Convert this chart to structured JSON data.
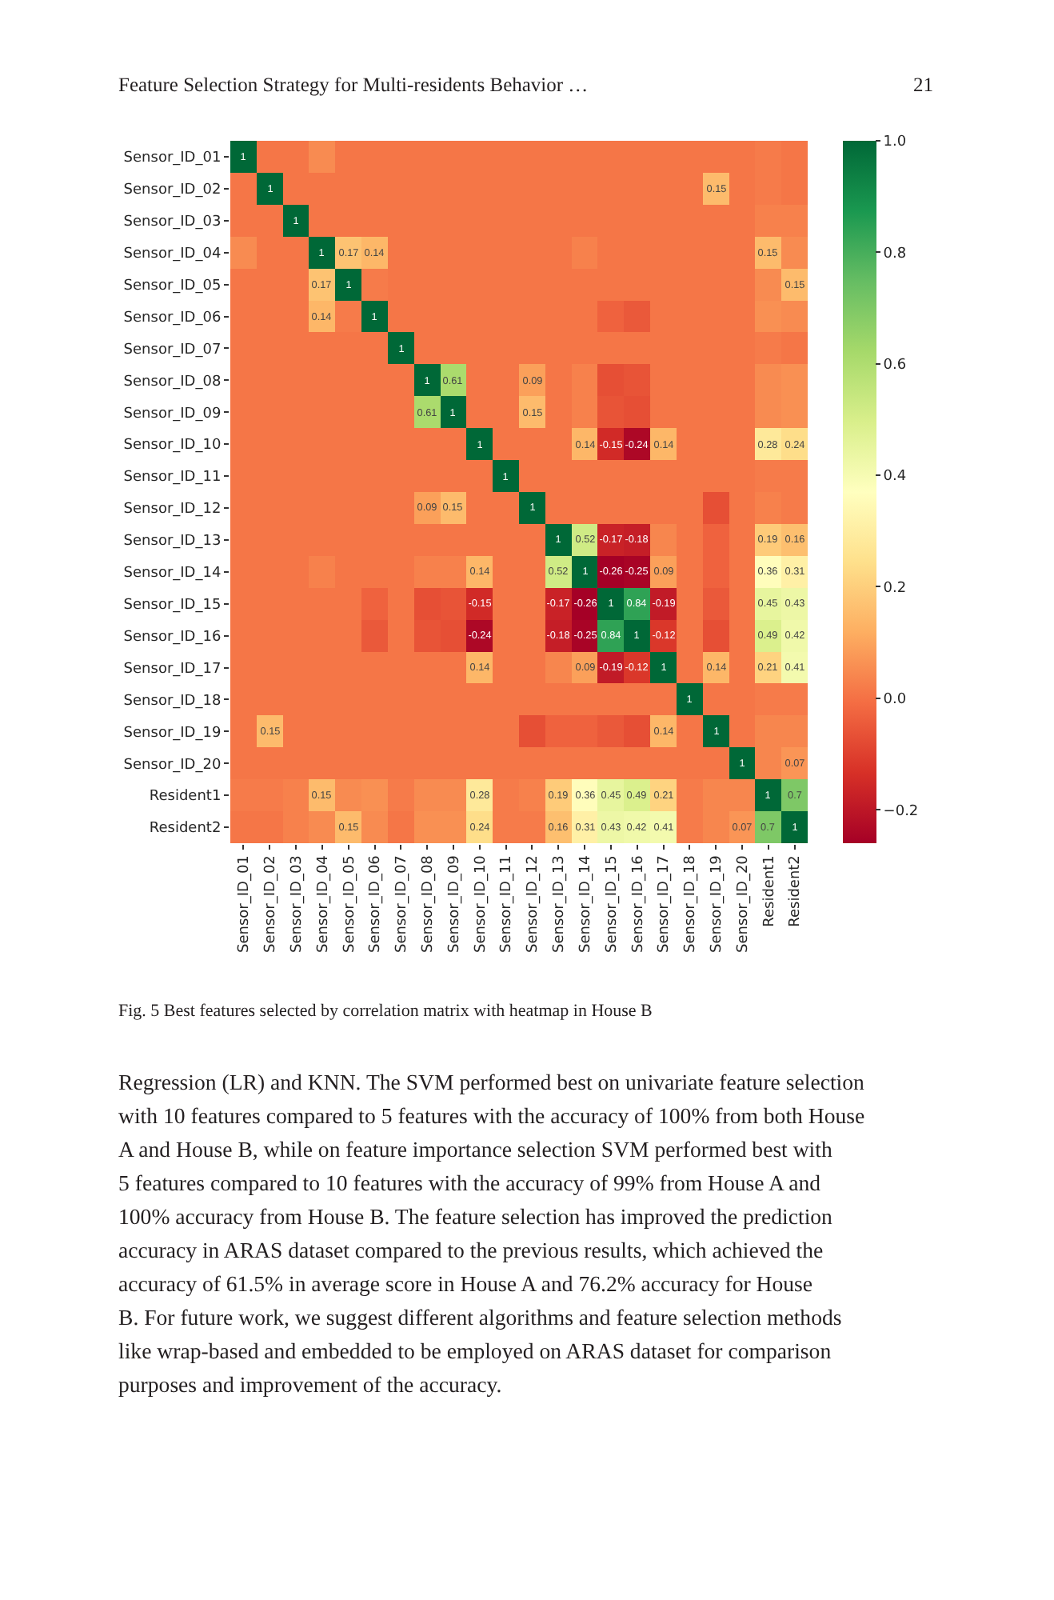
{
  "chart_data": {
    "type": "heatmap",
    "categories": [
      "Sensor_ID_01",
      "Sensor_ID_02",
      "Sensor_ID_03",
      "Sensor_ID_04",
      "Sensor_ID_05",
      "Sensor_ID_06",
      "Sensor_ID_07",
      "Sensor_ID_08",
      "Sensor_ID_09",
      "Sensor_ID_10",
      "Sensor_ID_11",
      "Sensor_ID_12",
      "Sensor_ID_13",
      "Sensor_ID_14",
      "Sensor_ID_15",
      "Sensor_ID_16",
      "Sensor_ID_17",
      "Sensor_ID_18",
      "Sensor_ID_19",
      "Sensor_ID_20",
      "Resident1",
      "Resident2"
    ],
    "y_categories": [
      "Sensor_ID_01",
      "Sensor_ID_02",
      "Sensor_ID_03",
      "Sensor_ID_04",
      "Sensor_ID_05",
      "Sensor_ID_06",
      "Sensor_ID_07",
      "Sensor_ID_08",
      "Sensor_ID_09",
      "Sensor_ID_10",
      "Sensor_ID_11",
      "Sensor_ID_12",
      "Sensor_ID_13",
      "Sensor_ID_14",
      "Sensor_ID_15",
      "Sensor_ID_16",
      "Sensor_ID_17",
      "Sensor_ID_18",
      "Sensor_ID_19",
      "Sensor_ID_20",
      "Resident1",
      "Resident2"
    ],
    "cells": [
      [
        1,
        0.01,
        0.01,
        0.05,
        0.01,
        0.01,
        0.01,
        0.01,
        0.01,
        0.01,
        0.01,
        0.01,
        0.01,
        0.01,
        0.01,
        0.01,
        0.01,
        0.01,
        0.01,
        0.01,
        0.02,
        0.01
      ],
      [
        0.01,
        1,
        0.01,
        0.01,
        0.01,
        0.01,
        0.01,
        0.01,
        0.01,
        0.01,
        0.01,
        0.01,
        0.01,
        0.01,
        0.01,
        0.01,
        0.01,
        0.01,
        0.15,
        0.01,
        0.02,
        0.01
      ],
      [
        0.01,
        0.01,
        1,
        0.01,
        0.01,
        0.01,
        0.01,
        0.01,
        0.01,
        0.01,
        0.01,
        0.01,
        0.01,
        0.01,
        0.01,
        0.01,
        0.01,
        0.01,
        0.01,
        0.01,
        0.03,
        0.03
      ],
      [
        0.05,
        0.01,
        0.01,
        1,
        0.17,
        0.14,
        0.01,
        0.01,
        0.01,
        0.01,
        0.01,
        0.01,
        0.01,
        0.03,
        0.01,
        0.01,
        0.01,
        0.01,
        0.01,
        0.01,
        0.15,
        0.05
      ],
      [
        0.01,
        0.01,
        0.01,
        0.17,
        1,
        0.02,
        0.01,
        0.01,
        0.01,
        0.01,
        0.01,
        0.01,
        0.01,
        0.01,
        0.01,
        0.01,
        0.01,
        0.01,
        0.01,
        0.01,
        0.05,
        0.15
      ],
      [
        0.01,
        0.01,
        0.01,
        0.14,
        0.02,
        1,
        0.01,
        0.01,
        0.01,
        0.01,
        0.01,
        0.01,
        0.01,
        0.01,
        -0.03,
        -0.05,
        0.01,
        0.01,
        0.01,
        0.01,
        0.06,
        0.05
      ],
      [
        0.01,
        0.01,
        0.01,
        0.01,
        0.01,
        0.01,
        1,
        0.01,
        0.01,
        0.01,
        0.01,
        0.01,
        0.01,
        0.01,
        0.01,
        0.01,
        0.01,
        0.01,
        0.01,
        0.01,
        0.02,
        0.01
      ],
      [
        0.01,
        0.01,
        0.01,
        0.01,
        0.01,
        0.01,
        0.01,
        1,
        0.61,
        0.01,
        0.01,
        0.09,
        0.01,
        0.03,
        -0.07,
        -0.06,
        0.01,
        0.01,
        0.01,
        0.01,
        0.05,
        0.06
      ],
      [
        0.01,
        0.01,
        0.01,
        0.01,
        0.01,
        0.01,
        0.01,
        0.61,
        1,
        0.01,
        0.01,
        0.15,
        0.01,
        0.03,
        -0.06,
        -0.07,
        0.01,
        0.01,
        0.01,
        0.01,
        0.05,
        0.06
      ],
      [
        0.01,
        0.01,
        0.01,
        0.01,
        0.01,
        0.01,
        0.01,
        0.01,
        0.01,
        1,
        0.01,
        0.01,
        0.01,
        0.14,
        -0.15,
        -0.24,
        0.14,
        0.01,
        0.01,
        0.01,
        0.28,
        0.24
      ],
      [
        0.01,
        0.01,
        0.01,
        0.01,
        0.01,
        0.01,
        0.01,
        0.01,
        0.01,
        0.01,
        1,
        0.01,
        0.01,
        0.01,
        0.01,
        0.01,
        0.01,
        0.01,
        0.01,
        0.01,
        0.02,
        0.02
      ],
      [
        0.01,
        0.01,
        0.01,
        0.01,
        0.01,
        0.01,
        0.01,
        0.09,
        0.15,
        0.01,
        0.01,
        1,
        0.01,
        0.01,
        0.01,
        0.01,
        0.01,
        0.01,
        -0.07,
        0.01,
        0.03,
        0.02
      ],
      [
        0.01,
        0.01,
        0.01,
        0.01,
        0.01,
        0.01,
        0.01,
        0.01,
        0.01,
        0.01,
        0.01,
        0.01,
        1,
        0.52,
        -0.17,
        -0.18,
        0.04,
        0.01,
        -0.03,
        0.01,
        0.19,
        0.16
      ],
      [
        0.01,
        0.01,
        0.01,
        0.03,
        0.01,
        0.01,
        0.01,
        0.03,
        0.03,
        0.14,
        0.01,
        0.01,
        0.52,
        1,
        -0.26,
        -0.25,
        0.09,
        0.01,
        -0.03,
        0.01,
        0.36,
        0.31
      ],
      [
        0.01,
        0.01,
        0.01,
        0.01,
        0.01,
        -0.03,
        0.01,
        -0.07,
        -0.06,
        -0.15,
        0.01,
        0.01,
        -0.17,
        -0.26,
        1,
        0.84,
        -0.19,
        0.01,
        -0.05,
        0.01,
        0.45,
        0.43
      ],
      [
        0.01,
        0.01,
        0.01,
        0.01,
        0.01,
        -0.05,
        0.01,
        -0.06,
        -0.07,
        -0.24,
        0.01,
        0.01,
        -0.18,
        -0.25,
        0.84,
        1,
        -0.12,
        0.01,
        -0.07,
        0.01,
        0.49,
        0.42
      ],
      [
        0.01,
        0.01,
        0.01,
        0.01,
        0.01,
        0.01,
        0.01,
        0.01,
        0.01,
        0.14,
        0.01,
        0.01,
        0.04,
        0.09,
        -0.19,
        -0.12,
        1,
        0.01,
        0.14,
        0.01,
        0.21,
        0.41
      ],
      [
        0.01,
        0.01,
        0.01,
        0.01,
        0.01,
        0.01,
        0.01,
        0.01,
        0.01,
        0.01,
        0.01,
        0.01,
        0.01,
        0.01,
        0.01,
        0.01,
        0.01,
        1,
        0.01,
        0.01,
        0.02,
        0.02
      ],
      [
        0.01,
        0.15,
        0.01,
        0.01,
        0.01,
        0.01,
        0.01,
        0.01,
        0.01,
        0.01,
        0.01,
        -0.07,
        -0.03,
        -0.03,
        -0.05,
        -0.07,
        0.14,
        0.01,
        1,
        0.01,
        0.04,
        0.04
      ],
      [
        0.01,
        0.01,
        0.01,
        0.01,
        0.01,
        0.01,
        0.01,
        0.01,
        0.01,
        0.01,
        0.01,
        0.01,
        0.01,
        0.01,
        0.01,
        0.01,
        0.01,
        0.01,
        0.01,
        1,
        0.04,
        0.07
      ],
      [
        0.02,
        0.02,
        0.03,
        0.15,
        0.05,
        0.06,
        0.02,
        0.05,
        0.05,
        0.28,
        0.02,
        0.03,
        0.19,
        0.36,
        0.45,
        0.49,
        0.21,
        0.02,
        0.04,
        0.04,
        1,
        0.7
      ],
      [
        0.01,
        0.01,
        0.03,
        0.05,
        0.15,
        0.05,
        0.01,
        0.06,
        0.06,
        0.24,
        0.02,
        0.02,
        0.16,
        0.31,
        0.43,
        0.42,
        0.41,
        0.02,
        0.04,
        0.07,
        0.7,
        1
      ]
    ],
    "cell_labels": [
      [
        "1",
        null,
        null,
        null,
        null,
        null,
        null,
        null,
        null,
        null,
        null,
        null,
        null,
        null,
        null,
        null,
        null,
        null,
        null,
        null,
        null,
        null
      ],
      [
        null,
        "1",
        null,
        null,
        null,
        null,
        null,
        null,
        null,
        null,
        null,
        null,
        null,
        null,
        null,
        null,
        null,
        null,
        "0.15",
        null,
        null,
        null
      ],
      [
        null,
        null,
        "1",
        null,
        null,
        null,
        null,
        null,
        null,
        null,
        null,
        null,
        null,
        null,
        null,
        null,
        null,
        null,
        null,
        null,
        null,
        null
      ],
      [
        null,
        null,
        null,
        "1",
        "0.17",
        "0.14",
        null,
        null,
        null,
        null,
        null,
        null,
        null,
        null,
        null,
        null,
        null,
        null,
        null,
        null,
        "0.15",
        null
      ],
      [
        null,
        null,
        null,
        "0.17",
        "1",
        null,
        null,
        null,
        null,
        null,
        null,
        null,
        null,
        null,
        null,
        null,
        null,
        null,
        null,
        null,
        null,
        "0.15"
      ],
      [
        null,
        null,
        null,
        "0.14",
        null,
        "1",
        null,
        null,
        null,
        null,
        null,
        null,
        null,
        null,
        null,
        null,
        null,
        null,
        null,
        null,
        null,
        null
      ],
      [
        null,
        null,
        null,
        null,
        null,
        null,
        "1",
        null,
        null,
        null,
        null,
        null,
        null,
        null,
        null,
        null,
        null,
        null,
        null,
        null,
        null,
        null
      ],
      [
        null,
        null,
        null,
        null,
        null,
        null,
        null,
        "1",
        "0.61",
        null,
        null,
        "0.09",
        null,
        null,
        null,
        null,
        null,
        null,
        null,
        null,
        null,
        null
      ],
      [
        null,
        null,
        null,
        null,
        null,
        null,
        null,
        "0.61",
        "1",
        null,
        null,
        "0.15",
        null,
        null,
        null,
        null,
        null,
        null,
        null,
        null,
        null,
        null
      ],
      [
        null,
        null,
        null,
        null,
        null,
        null,
        null,
        null,
        null,
        "1",
        null,
        null,
        null,
        "0.14",
        "-0.15",
        "-0.24",
        "0.14",
        null,
        null,
        null,
        "0.28",
        "0.24"
      ],
      [
        null,
        null,
        null,
        null,
        null,
        null,
        null,
        null,
        null,
        null,
        "1",
        null,
        null,
        null,
        null,
        null,
        null,
        null,
        null,
        null,
        null,
        null
      ],
      [
        null,
        null,
        null,
        null,
        null,
        null,
        null,
        "0.09",
        "0.15",
        null,
        null,
        "1",
        null,
        null,
        null,
        null,
        null,
        null,
        null,
        null,
        null,
        null
      ],
      [
        null,
        null,
        null,
        null,
        null,
        null,
        null,
        null,
        null,
        null,
        null,
        null,
        "1",
        "0.52",
        "-0.17",
        "-0.18",
        null,
        null,
        null,
        null,
        "0.19",
        "0.16"
      ],
      [
        null,
        null,
        null,
        null,
        null,
        null,
        null,
        null,
        null,
        "0.14",
        null,
        null,
        "0.52",
        "1",
        "-0.26",
        "-0.25",
        "0.09",
        null,
        null,
        null,
        "0.36",
        "0.31"
      ],
      [
        null,
        null,
        null,
        null,
        null,
        null,
        null,
        null,
        null,
        "-0.15",
        null,
        null,
        "-0.17",
        "-0.26",
        "1",
        "0.84",
        "-0.19",
        null,
        null,
        null,
        "0.45",
        "0.43"
      ],
      [
        null,
        null,
        null,
        null,
        null,
        null,
        null,
        null,
        null,
        "-0.24",
        null,
        null,
        "-0.18",
        "-0.25",
        "0.84",
        "1",
        "-0.12",
        null,
        null,
        null,
        "0.49",
        "0.42"
      ],
      [
        null,
        null,
        null,
        null,
        null,
        null,
        null,
        null,
        null,
        "0.14",
        null,
        null,
        null,
        "0.09",
        "-0.19",
        "-0.12",
        "1",
        null,
        "0.14",
        null,
        "0.21",
        "0.41"
      ],
      [
        null,
        null,
        null,
        null,
        null,
        null,
        null,
        null,
        null,
        null,
        null,
        null,
        null,
        null,
        null,
        null,
        null,
        "1",
        null,
        null,
        null,
        null
      ],
      [
        null,
        "0.15",
        null,
        null,
        null,
        null,
        null,
        null,
        null,
        null,
        null,
        null,
        null,
        null,
        null,
        null,
        "0.14",
        null,
        "1",
        null,
        null,
        null
      ],
      [
        null,
        null,
        null,
        null,
        null,
        null,
        null,
        null,
        null,
        null,
        null,
        null,
        null,
        null,
        null,
        null,
        null,
        null,
        null,
        "1",
        null,
        "0.07"
      ],
      [
        null,
        null,
        null,
        "0.15",
        null,
        null,
        null,
        null,
        null,
        "0.28",
        null,
        null,
        "0.19",
        "0.36",
        "0.45",
        "0.49",
        "0.21",
        null,
        null,
        null,
        "1",
        "0.7"
      ],
      [
        null,
        null,
        null,
        null,
        "0.15",
        null,
        null,
        null,
        null,
        "0.24",
        null,
        null,
        "0.16",
        "0.31",
        "0.43",
        "0.42",
        "0.41",
        null,
        null,
        "0.07",
        "0.7",
        "1"
      ]
    ],
    "clim": [
      -0.26,
      1
    ],
    "cticks": [
      {
        "value": 1,
        "label": "1.0"
      },
      0.8,
      0.6,
      0.4,
      0.2,
      {
        "value": 0,
        "label": "0.0"
      },
      {
        "value": -0.2,
        "label": "−0.2"
      }
    ],
    "annotations": [
      "Feature Selection Strategy for Multi-residents Behavior …",
      "21",
      "Fig. 5 Best features selected by correlation matrix with heatmap in House B",
      "Regression (LR) and KNN. The SVM performed best on univariate feature selection",
      "with 10 features compared to 5 features with the accuracy of 100% from both House",
      "A and House B, while on feature importance selection SVM performed best with",
      "5 features compared to 10 features with the accuracy of 99% from House A and",
      "100% accuracy from House B. The feature selection has improved the prediction",
      "accuracy in ARAS dataset compared to the previous results, which achieved the",
      "accuracy of 61.5% in average score in House A and 76.2% accuracy for House",
      "B. For future work, we suggest different algorithms and feature selection methods",
      "like wrap-based and embedded to be employed on ARAS dataset for comparison",
      "purposes and improvement of the accuracy."
    ]
  }
}
